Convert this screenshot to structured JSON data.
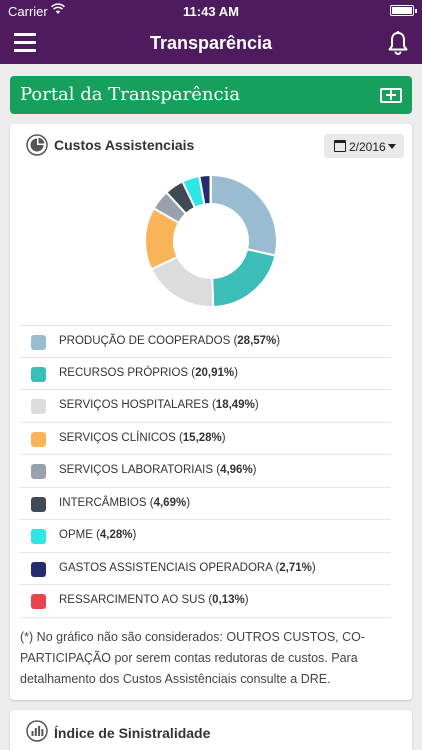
{
  "status_bar": {
    "carrier": "Carrier",
    "time": "11:43 AM"
  },
  "navbar": {
    "title": "Transparência"
  },
  "portal": {
    "title": "Portal da Transparência"
  },
  "costs_card": {
    "heading": "Custos Assistenciais",
    "period": "2/2016",
    "legend": [
      {
        "name": "PRODUÇÃO DE COOPERADOS",
        "percent": "28,57%",
        "color": "#99bcd0"
      },
      {
        "name": "RECURSOS PRÓPRIOS",
        "percent": "20,91%",
        "color": "#3cbdb8"
      },
      {
        "name": "SERVIÇOS HOSPITALARES",
        "percent": "18,49%",
        "color": "#dcdcdc"
      },
      {
        "name": "SERVIÇOS CLÍNICOS",
        "percent": "15,28%",
        "color": "#f9b45a"
      },
      {
        "name": "SERVIÇOS LABORATORIAIS",
        "percent": "4,96%",
        "color": "#98a2ae"
      },
      {
        "name": "INTERCÂMBIOS",
        "percent": "4,69%",
        "color": "#404a56"
      },
      {
        "name": "OPME",
        "percent": "4,28%",
        "color": "#2ee6e6"
      },
      {
        "name": "GASTOS ASSISTENCIAIS OPERADORA",
        "percent": "2,71%",
        "color": "#252a72"
      },
      {
        "name": "RESSARCIMENTO AO SUS",
        "percent": "0,13%",
        "color": "#e9434d"
      }
    ],
    "note": "(*) No gráfico não são considerados: OUTROS CUSTOS, CO-PARTICIPAÇÃO por serem contas redutoras de custos. Para detalhamento dos Custos Assistênciais consulte a DRE."
  },
  "chart_data": {
    "type": "pie",
    "categories": [
      "PRODUÇÃO DE COOPERADOS",
      "RECURSOS PRÓPRIOS",
      "SERVIÇOS HOSPITALARES",
      "SERVIÇOS CLÍNICOS",
      "SERVIÇOS LABORATORIAIS",
      "INTERCÂMBIOS",
      "OPME",
      "GASTOS ASSISTENCIAIS OPERADORA",
      "RESSARCIMENTO AO SUS"
    ],
    "values": [
      28.57,
      20.91,
      18.49,
      15.28,
      4.96,
      4.69,
      4.28,
      2.71,
      0.13
    ],
    "colors": [
      "#99bcd0",
      "#3cbdb8",
      "#dcdcdc",
      "#f9b45a",
      "#98a2ae",
      "#404a56",
      "#2ee6e6",
      "#252a72",
      "#e9434d"
    ],
    "legend": "below"
  },
  "sinistralidade_card": {
    "heading": "Índice de Sinistralidade"
  }
}
